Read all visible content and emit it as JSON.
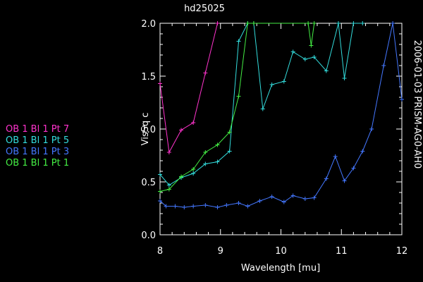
{
  "chart_data": {
    "type": "line",
    "title": "hd25025",
    "xlabel": "Wavelength [mu]",
    "ylabel": "VisSq c",
    "side_label": "2006-01-03 PRISM-AG0-AH0",
    "xlim": [
      8,
      12
    ],
    "ylim": [
      0,
      2.0
    ],
    "x_ticks": [
      "8",
      "9",
      "10",
      "11",
      "12"
    ],
    "y_ticks": [
      "0.0",
      "0.5",
      "1.0",
      "1.5",
      "2.0"
    ],
    "legend_placement": "left",
    "grid": false,
    "series": [
      {
        "name": "OB 1 Bl 1 Pt 7",
        "color": "#ff33cc",
        "x": [
          8.0,
          8.15,
          8.35,
          8.55,
          8.75,
          8.95
        ],
        "y": [
          1.43,
          0.78,
          0.99,
          1.06,
          1.53,
          2.0
        ]
      },
      {
        "name": "OB 1 Bl 1 Pt 5",
        "color": "#33dddd",
        "x": [
          8.0,
          8.15,
          8.35,
          8.55,
          8.75,
          8.95,
          9.15,
          9.3,
          9.45,
          9.55,
          9.7,
          9.85,
          10.05,
          10.2,
          10.4,
          10.55,
          10.75,
          10.95,
          11.05,
          11.2,
          11.35
        ],
        "y": [
          0.57,
          0.47,
          0.54,
          0.58,
          0.67,
          0.69,
          0.79,
          1.83,
          2.0,
          2.0,
          1.19,
          1.42,
          1.45,
          1.73,
          1.66,
          1.68,
          1.55,
          2.0,
          1.48,
          2.0,
          2.0
        ]
      },
      {
        "name": "OB 1 Bl 1 Pt 3",
        "color": "#4477ff",
        "x": [
          8.0,
          8.1,
          8.25,
          8.4,
          8.55,
          8.75,
          8.95,
          9.1,
          9.3,
          9.45,
          9.65,
          9.85,
          10.05,
          10.2,
          10.4,
          10.55,
          10.75,
          10.9,
          11.05,
          11.2,
          11.35,
          11.5,
          11.7,
          11.85,
          12.0
        ],
        "y": [
          0.32,
          0.27,
          0.27,
          0.26,
          0.27,
          0.28,
          0.26,
          0.28,
          0.3,
          0.27,
          0.32,
          0.36,
          0.31,
          0.37,
          0.34,
          0.35,
          0.53,
          0.74,
          0.51,
          0.63,
          0.79,
          1.0,
          1.6,
          2.0,
          1.28
        ]
      },
      {
        "name": "OB 1 Bl 1 Pt 1",
        "color": "#44ee44",
        "x": [
          8.0,
          8.15,
          8.35,
          8.55,
          8.75,
          8.95,
          9.15,
          9.3,
          9.45,
          9.55,
          10.45,
          10.5,
          10.55
        ],
        "y": [
          0.41,
          0.43,
          0.55,
          0.62,
          0.78,
          0.85,
          0.97,
          1.31,
          2.0,
          2.0,
          2.0,
          1.79,
          2.0
        ]
      }
    ]
  }
}
